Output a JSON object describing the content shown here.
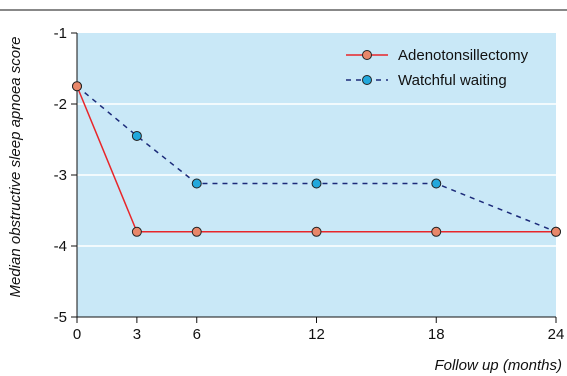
{
  "chart_data": {
    "type": "line",
    "title": "",
    "xlabel": "Follow up (months)",
    "ylabel": "Median obstructive sleep apnoea score",
    "x": [
      0,
      3,
      6,
      12,
      18,
      24
    ],
    "xlim": [
      0,
      24
    ],
    "ylim": [
      -5,
      -1
    ],
    "xticks": [
      "0",
      "3",
      "6",
      "12",
      "18",
      "24"
    ],
    "yticks": [
      "-1",
      "-2",
      "-3",
      "-4",
      "-5"
    ],
    "grid": "horizontal",
    "legend_position": "top-right",
    "series": [
      {
        "name": "Adenotonsillectomy",
        "values": [
          -1.75,
          -3.8,
          -3.8,
          -3.8,
          -3.8,
          -3.8
        ],
        "line_color": "#e8262a",
        "marker_color": "#e8876a",
        "line_style": "solid"
      },
      {
        "name": "Watchful waiting",
        "values": [
          -1.75,
          -2.45,
          -3.12,
          -3.12,
          -3.12,
          -3.8
        ],
        "line_color": "#1c2b7a",
        "marker_color": "#22a8dc",
        "line_style": "dashed"
      }
    ]
  },
  "colors": {
    "plot_background": "#c9e8f7",
    "gridline": "#ffffff",
    "axis": "#111111"
  }
}
